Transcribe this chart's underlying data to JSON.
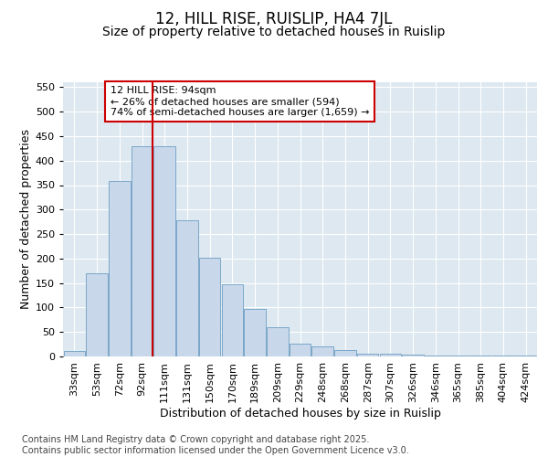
{
  "title": "12, HILL RISE, RUISLIP, HA4 7JL",
  "subtitle": "Size of property relative to detached houses in Ruislip",
  "xlabel": "Distribution of detached houses by size in Ruislip",
  "ylabel": "Number of detached properties",
  "categories": [
    "33sqm",
    "53sqm",
    "72sqm",
    "92sqm",
    "111sqm",
    "131sqm",
    "150sqm",
    "170sqm",
    "189sqm",
    "209sqm",
    "229sqm",
    "248sqm",
    "268sqm",
    "287sqm",
    "307sqm",
    "326sqm",
    "346sqm",
    "365sqm",
    "385sqm",
    "404sqm",
    "424sqm"
  ],
  "bar_values": [
    12,
    170,
    358,
    430,
    430,
    278,
    202,
    148,
    98,
    60,
    27,
    20,
    13,
    5,
    5,
    3,
    2,
    1,
    1,
    1,
    1
  ],
  "bar_color": "#c8d8ea",
  "bar_edge_color": "#7ba7c9",
  "vline_color": "#cc0000",
  "vline_pos": 3.47,
  "annotation_text": "12 HILL RISE: 94sqm\n← 26% of detached houses are smaller (594)\n74% of semi-detached houses are larger (1,659) →",
  "annotation_box_edge_color": "#cc0000",
  "ylim": [
    0,
    560
  ],
  "yticks": [
    0,
    50,
    100,
    150,
    200,
    250,
    300,
    350,
    400,
    450,
    500,
    550
  ],
  "bg_color": "#dde8f0",
  "grid_color": "#ffffff",
  "fig_bg_color": "#ffffff",
  "footer": "Contains HM Land Registry data © Crown copyright and database right 2025.\nContains public sector information licensed under the Open Government Licence v3.0.",
  "title_fontsize": 12,
  "subtitle_fontsize": 10,
  "ylabel_fontsize": 9,
  "xlabel_fontsize": 9,
  "tick_fontsize": 8,
  "annotation_fontsize": 8,
  "footer_fontsize": 7
}
